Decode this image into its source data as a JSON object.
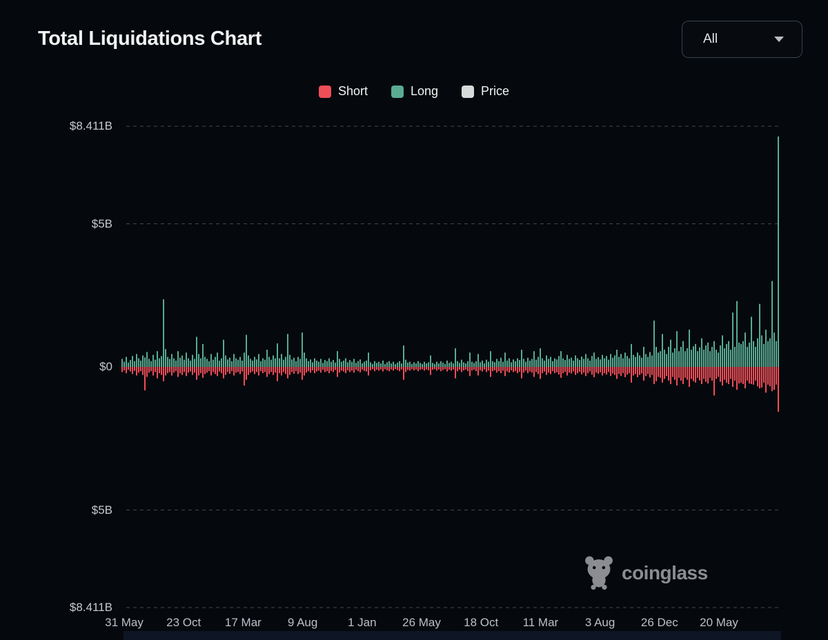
{
  "page": {
    "title": "Total Liquidations Chart"
  },
  "controls": {
    "range_selector": {
      "value": "All",
      "icon": "chevron-down-icon"
    }
  },
  "legend": [
    {
      "label": "Short",
      "color": "#ef4e58"
    },
    {
      "label": "Long",
      "color": "#5aab92"
    },
    {
      "label": "Price",
      "color": "#d8d9da"
    }
  ],
  "watermark": {
    "text": "coinglass",
    "icon": "coinglass-bear-icon"
  },
  "chart_data": {
    "type": "bar",
    "title": "Total Liquidations Chart",
    "orientation": "diverging-vertical",
    "unit": "USD billions",
    "grid": "dashed horizontal",
    "legend_position": "top-center",
    "y_axis": {
      "max_billions": 8.411,
      "labels": [
        {
          "text": "$8.411B",
          "value": 8.411
        },
        {
          "text": "$5B",
          "value": 5
        },
        {
          "text": "$0",
          "value": 0
        },
        {
          "text": "$5B",
          "value": -5
        },
        {
          "text": "$8.411B",
          "value": -8.411
        }
      ]
    },
    "x_axis": {
      "labels": [
        "31 May",
        "23 Oct",
        "17 Mar",
        "9 Aug",
        "1 Jan",
        "26 May",
        "18 Oct",
        "11 Mar",
        "3 Aug",
        "26 Dec",
        "20 May"
      ]
    },
    "series": [
      {
        "name": "Long",
        "color": "#5aab92",
        "direction": "up",
        "values_billions": [
          0.28,
          0.18,
          0.35,
          0.15,
          0.24,
          0.38,
          0.2,
          0.45,
          0.3,
          0.22,
          0.4,
          0.33,
          0.52,
          0.28,
          0.2,
          0.42,
          0.25,
          0.55,
          0.3,
          0.38,
          2.36,
          0.62,
          0.35,
          0.28,
          0.45,
          0.3,
          0.22,
          0.55,
          0.32,
          0.4,
          0.25,
          0.5,
          0.3,
          0.22,
          0.42,
          0.28,
          1.05,
          0.45,
          0.3,
          0.8,
          0.35,
          0.28,
          0.2,
          0.45,
          0.25,
          0.35,
          0.5,
          0.22,
          0.3,
          0.95,
          0.4,
          0.26,
          0.32,
          0.2,
          0.45,
          0.3,
          0.25,
          0.35,
          0.22,
          0.5,
          1.12,
          0.4,
          0.28,
          0.22,
          0.35,
          0.26,
          0.45,
          0.2,
          0.3,
          0.25,
          0.6,
          0.35,
          0.25,
          0.4,
          0.3,
          0.82,
          0.3,
          0.45,
          0.25,
          0.35,
          1.15,
          0.42,
          0.26,
          0.32,
          0.2,
          0.35,
          0.28,
          1.2,
          0.5,
          0.3,
          0.2,
          0.26,
          0.16,
          0.3,
          0.22,
          0.18,
          0.28,
          0.14,
          0.24,
          0.2,
          0.3,
          0.18,
          0.24,
          0.15,
          0.55,
          0.28,
          0.18,
          0.22,
          0.3,
          0.16,
          0.24,
          0.18,
          0.28,
          0.14,
          0.2,
          0.26,
          0.12,
          0.18,
          0.22,
          0.5,
          0.16,
          0.1,
          0.2,
          0.14,
          0.18,
          0.12,
          0.22,
          0.1,
          0.16,
          0.2,
          0.12,
          0.18,
          0.1,
          0.15,
          0.2,
          0.12,
          0.75,
          0.25,
          0.15,
          0.18,
          0.1,
          0.16,
          0.12,
          0.2,
          0.14,
          0.1,
          0.18,
          0.12,
          0.16,
          0.4,
          0.14,
          0.1,
          0.18,
          0.12,
          0.2,
          0.15,
          0.1,
          0.22,
          0.14,
          0.18,
          0.12,
          0.65,
          0.2,
          0.14,
          0.25,
          0.16,
          0.12,
          0.2,
          0.5,
          0.18,
          0.14,
          0.2,
          0.45,
          0.16,
          0.22,
          0.12,
          0.25,
          0.18,
          0.55,
          0.2,
          0.16,
          0.28,
          0.2,
          0.32,
          0.18,
          0.5,
          0.22,
          0.3,
          0.16,
          0.26,
          0.2,
          0.3,
          0.24,
          0.6,
          0.28,
          0.18,
          0.32,
          0.22,
          0.28,
          0.55,
          0.25,
          0.35,
          0.65,
          0.3,
          0.22,
          0.4,
          0.28,
          0.35,
          0.2,
          0.3,
          0.26,
          0.38,
          0.55,
          0.3,
          0.24,
          0.42,
          0.28,
          0.32,
          0.22,
          0.4,
          0.3,
          0.24,
          0.36,
          0.28,
          0.45,
          0.3,
          0.22,
          0.38,
          0.5,
          0.28,
          0.34,
          0.26,
          0.42,
          0.3,
          0.38,
          0.25,
          0.45,
          0.32,
          0.4,
          0.6,
          0.35,
          0.45,
          0.3,
          0.5,
          0.38,
          0.3,
          0.8,
          0.42,
          0.35,
          0.5,
          0.4,
          0.32,
          0.7,
          0.45,
          0.35,
          0.52,
          0.4,
          1.62,
          0.7,
          0.5,
          0.55,
          1.15,
          0.6,
          0.45,
          0.7,
          0.95,
          0.5,
          0.65,
          1.25,
          0.55,
          0.7,
          0.9,
          0.55,
          0.65,
          1.3,
          0.6,
          0.72,
          0.8,
          0.55,
          0.68,
          1.0,
          0.6,
          0.75,
          0.85,
          0.55,
          0.7,
          0.9,
          0.6,
          0.5,
          0.75,
          1.1,
          0.65,
          0.8,
          0.9,
          0.6,
          1.9,
          0.7,
          2.3,
          0.85,
          0.8,
          0.9,
          1.2,
          0.7,
          0.85,
          1.75,
          0.9,
          0.7,
          1.0,
          2.2,
          1.1,
          0.8,
          1.3,
          0.9,
          1.0,
          3.0,
          1.2,
          0.9,
          8.05
        ]
      },
      {
        "name": "Short",
        "color": "#ef4e58",
        "direction": "down",
        "values_billions": [
          0.18,
          0.12,
          0.22,
          0.1,
          0.16,
          0.25,
          0.14,
          0.3,
          0.2,
          0.15,
          0.28,
          0.82,
          0.35,
          0.2,
          0.15,
          0.3,
          0.18,
          0.4,
          0.22,
          0.28,
          0.5,
          0.3,
          0.22,
          0.18,
          0.3,
          0.2,
          0.15,
          0.35,
          0.22,
          0.28,
          0.18,
          0.32,
          0.2,
          0.16,
          0.28,
          0.2,
          0.45,
          0.3,
          0.22,
          0.38,
          0.25,
          0.2,
          0.15,
          0.3,
          0.18,
          0.25,
          0.32,
          0.16,
          0.22,
          0.4,
          0.28,
          0.18,
          0.24,
          0.15,
          0.3,
          0.2,
          0.18,
          0.25,
          0.16,
          0.65,
          0.45,
          0.28,
          0.2,
          0.16,
          0.25,
          0.18,
          0.3,
          0.15,
          0.22,
          0.18,
          0.35,
          0.25,
          0.18,
          0.28,
          0.2,
          0.5,
          0.22,
          0.3,
          0.18,
          0.25,
          0.4,
          0.28,
          0.18,
          0.24,
          0.15,
          0.25,
          0.2,
          0.45,
          0.3,
          0.2,
          0.15,
          0.2,
          0.12,
          0.22,
          0.16,
          0.13,
          0.2,
          0.1,
          0.18,
          0.15,
          0.22,
          0.14,
          0.18,
          0.11,
          0.35,
          0.2,
          0.13,
          0.16,
          0.22,
          0.12,
          0.18,
          0.13,
          0.2,
          0.1,
          0.15,
          0.19,
          0.09,
          0.14,
          0.16,
          0.3,
          0.12,
          0.08,
          0.15,
          0.1,
          0.13,
          0.09,
          0.16,
          0.08,
          0.12,
          0.15,
          0.09,
          0.13,
          0.08,
          0.11,
          0.15,
          0.09,
          0.45,
          0.18,
          0.11,
          0.13,
          0.08,
          0.12,
          0.09,
          0.15,
          0.1,
          0.08,
          0.13,
          0.09,
          0.12,
          0.28,
          0.1,
          0.08,
          0.13,
          0.09,
          0.15,
          0.11,
          0.08,
          0.16,
          0.1,
          0.13,
          0.09,
          0.4,
          0.15,
          0.1,
          0.18,
          0.12,
          0.09,
          0.15,
          0.32,
          0.13,
          0.1,
          0.15,
          0.3,
          0.12,
          0.16,
          0.09,
          0.18,
          0.13,
          0.35,
          0.15,
          0.12,
          0.2,
          0.15,
          0.22,
          0.13,
          0.32,
          0.16,
          0.2,
          0.12,
          0.18,
          0.15,
          0.22,
          0.17,
          0.4,
          0.2,
          0.13,
          0.22,
          0.16,
          0.2,
          0.35,
          0.18,
          0.25,
          0.42,
          0.22,
          0.16,
          0.28,
          0.2,
          0.25,
          0.15,
          0.22,
          0.19,
          0.27,
          0.38,
          0.22,
          0.17,
          0.3,
          0.2,
          0.23,
          0.16,
          0.28,
          0.22,
          0.17,
          0.26,
          0.2,
          0.32,
          0.22,
          0.16,
          0.27,
          0.36,
          0.2,
          0.24,
          0.19,
          0.3,
          0.22,
          0.27,
          0.18,
          0.32,
          0.23,
          0.28,
          0.42,
          0.25,
          0.32,
          0.22,
          0.36,
          0.27,
          0.22,
          0.55,
          0.3,
          0.25,
          0.36,
          0.28,
          0.23,
          0.48,
          0.32,
          0.25,
          0.37,
          0.28,
          0.6,
          0.5,
          0.35,
          0.38,
          0.55,
          0.42,
          0.32,
          0.48,
          0.6,
          0.35,
          0.45,
          0.65,
          0.38,
          0.48,
          0.6,
          0.38,
          0.45,
          0.7,
          0.42,
          0.5,
          0.55,
          0.38,
          0.47,
          0.6,
          0.42,
          0.52,
          0.58,
          0.38,
          0.48,
          1.0,
          0.42,
          0.35,
          0.52,
          0.65,
          0.45,
          0.55,
          0.6,
          0.42,
          0.7,
          0.48,
          0.8,
          0.58,
          0.55,
          0.6,
          0.75,
          0.48,
          0.58,
          0.6,
          0.62,
          0.48,
          0.68,
          0.75,
          0.72,
          0.55,
          0.9,
          0.62,
          0.68,
          0.85,
          0.8,
          0.62,
          1.57
        ]
      }
    ]
  }
}
